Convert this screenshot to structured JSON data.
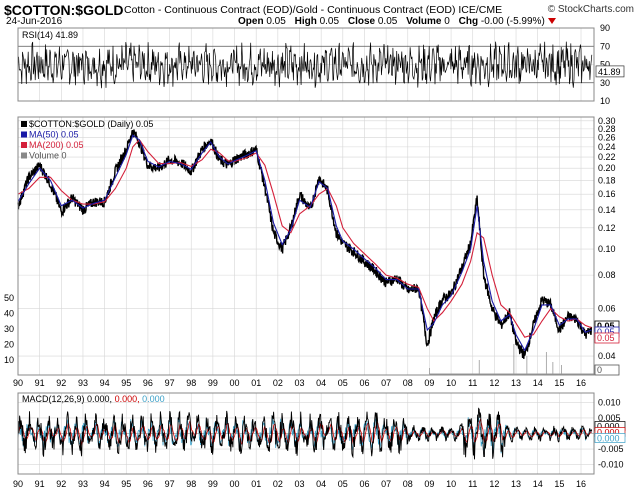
{
  "header": {
    "symbol": "$COTTON:$GOLD",
    "description": "Cotton - Continuous Contract (EOD)/Gold - Continuous Contract (EOD) ICE/CME",
    "brand": "© StockCharts.com",
    "date": "24-Jun-2016",
    "open_label": "Open",
    "open": "0.05",
    "high_label": "High",
    "high": "0.05",
    "close_label": "Close",
    "close": "0.05",
    "volume_label": "Volume",
    "volume": "0",
    "chg_label": "Chg",
    "chg": "-0.00 (-5.99%)"
  },
  "colors": {
    "price": "#000000",
    "ma50": "#1a1aa6",
    "ma200": "#d4203a",
    "macd_signal": "#cc0000",
    "macd_hist": "#3aa0c8",
    "grid": "#d6d6d6"
  },
  "chart_data": [
    {
      "type": "line",
      "panel": "rsi",
      "label": "RSI(14) 41.89",
      "yticks": [
        "90",
        "70",
        "50",
        "30",
        "10"
      ],
      "ylim": [
        10,
        90
      ],
      "last_value": "41.89",
      "reference_lines": [
        70,
        30
      ]
    },
    {
      "type": "line",
      "panel": "price",
      "log_scale": true,
      "legend": [
        {
          "label": "$COTTON:$GOLD (Daily) 0.05",
          "color": "#000000"
        },
        {
          "label": "MA(50) 0.05",
          "color": "#1a1aa6"
        },
        {
          "label": "MA(200) 0.05",
          "color": "#d4203a"
        },
        {
          "label": "Volume 0",
          "color": "#888888"
        }
      ],
      "yticks": [
        "0.30",
        "0.28",
        "0.26",
        "0.24",
        "0.22",
        "0.20",
        "0.18",
        "0.16",
        "0.14",
        "0.12",
        "0.10",
        "0.08",
        "0.06",
        "0.04"
      ],
      "ylim": [
        0.034,
        0.31
      ],
      "volume_ticks": [
        "50",
        "40",
        "30",
        "20",
        "10"
      ],
      "last_value_labels": [
        "0.05",
        "0.05",
        "0.05",
        "0"
      ],
      "x": [
        1990.0,
        1990.5,
        1991.0,
        1991.5,
        1992.0,
        1992.5,
        1993.0,
        1993.5,
        1994.0,
        1994.5,
        1995.0,
        1995.3,
        1995.6,
        1996.0,
        1996.5,
        1997.0,
        1997.5,
        1998.0,
        1998.5,
        1998.9,
        1999.3,
        1999.7,
        2000.0,
        2000.5,
        2001.0,
        2001.4,
        2001.8,
        2002.2,
        2002.6,
        2003.0,
        2003.5,
        2003.9,
        2004.3,
        2004.7,
        2005.0,
        2005.5,
        2006.0,
        2006.5,
        2007.0,
        2007.5,
        2008.0,
        2008.5,
        2008.9,
        2009.2,
        2009.6,
        2010.0,
        2010.5,
        2010.9,
        2011.2,
        2011.5,
        2011.9,
        2012.3,
        2012.7,
        2013.0,
        2013.4,
        2013.8,
        2014.2,
        2014.6,
        2015.0,
        2015.4,
        2015.8,
        2016.2,
        2016.48
      ],
      "price": [
        0.145,
        0.185,
        0.205,
        0.175,
        0.138,
        0.155,
        0.14,
        0.15,
        0.15,
        0.195,
        0.235,
        0.275,
        0.25,
        0.205,
        0.2,
        0.215,
        0.21,
        0.195,
        0.235,
        0.255,
        0.215,
        0.205,
        0.215,
        0.225,
        0.235,
        0.17,
        0.115,
        0.1,
        0.12,
        0.16,
        0.14,
        0.185,
        0.165,
        0.115,
        0.105,
        0.098,
        0.09,
        0.083,
        0.075,
        0.078,
        0.07,
        0.072,
        0.044,
        0.055,
        0.065,
        0.068,
        0.085,
        0.105,
        0.155,
        0.08,
        0.06,
        0.052,
        0.058,
        0.045,
        0.04,
        0.052,
        0.065,
        0.062,
        0.05,
        0.056,
        0.055,
        0.048,
        0.05
      ],
      "ma50": [
        0.15,
        0.175,
        0.2,
        0.18,
        0.145,
        0.152,
        0.142,
        0.148,
        0.152,
        0.185,
        0.225,
        0.265,
        0.255,
        0.212,
        0.202,
        0.212,
        0.208,
        0.198,
        0.228,
        0.25,
        0.22,
        0.207,
        0.213,
        0.222,
        0.232,
        0.18,
        0.125,
        0.104,
        0.118,
        0.152,
        0.143,
        0.178,
        0.168,
        0.122,
        0.107,
        0.1,
        0.092,
        0.085,
        0.077,
        0.077,
        0.071,
        0.071,
        0.05,
        0.053,
        0.062,
        0.067,
        0.082,
        0.1,
        0.145,
        0.09,
        0.064,
        0.054,
        0.057,
        0.048,
        0.042,
        0.05,
        0.062,
        0.062,
        0.052,
        0.055,
        0.055,
        0.049,
        0.05
      ],
      "ma200": [
        0.16,
        0.168,
        0.185,
        0.185,
        0.165,
        0.152,
        0.147,
        0.147,
        0.15,
        0.168,
        0.2,
        0.24,
        0.255,
        0.23,
        0.208,
        0.208,
        0.21,
        0.203,
        0.215,
        0.235,
        0.228,
        0.213,
        0.212,
        0.218,
        0.228,
        0.205,
        0.16,
        0.122,
        0.115,
        0.135,
        0.145,
        0.16,
        0.168,
        0.145,
        0.12,
        0.105,
        0.096,
        0.088,
        0.08,
        0.078,
        0.074,
        0.072,
        0.06,
        0.054,
        0.058,
        0.064,
        0.074,
        0.09,
        0.115,
        0.11,
        0.08,
        0.062,
        0.058,
        0.053,
        0.047,
        0.048,
        0.054,
        0.06,
        0.056,
        0.054,
        0.055,
        0.052,
        0.051
      ]
    },
    {
      "type": "line",
      "panel": "macd",
      "label": "MACD(12,26,9) 0.000, 0.000, 0.000",
      "label_parts": {
        "name": "MACD(12,26,9)",
        "macd": "0.000,",
        "signal": "0.000,",
        "hist": "0.000"
      },
      "yticks": [
        "0.010",
        "0.005",
        "0.000",
        "-0.005",
        "-0.010"
      ],
      "ylim": [
        -0.013,
        0.013
      ],
      "last_values": [
        "0.000",
        "0.000",
        "0.000"
      ]
    }
  ],
  "x_axis": {
    "labels": [
      "90",
      "91",
      "92",
      "93",
      "94",
      "95",
      "96",
      "97",
      "98",
      "99",
      "00",
      "01",
      "02",
      "03",
      "04",
      "05",
      "06",
      "07",
      "08",
      "09",
      "10",
      "11",
      "12",
      "13",
      "14",
      "15",
      "16"
    ],
    "range": [
      1990.0,
      2016.6
    ]
  }
}
